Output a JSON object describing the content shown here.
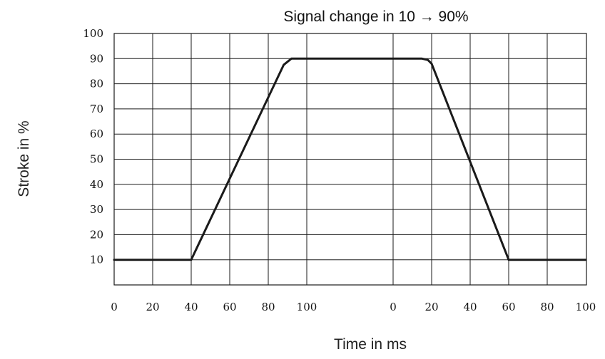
{
  "chart_data": {
    "type": "line",
    "title": "Signal change in 10 → 90%",
    "xlabel": "Time in ms",
    "ylabel": "Stroke in %",
    "ylim": [
      0,
      100
    ],
    "y_ticks": [
      "100",
      "90",
      "80",
      "70",
      "60",
      "50",
      "40",
      "30",
      "20",
      "10"
    ],
    "x_ticks": [
      "0",
      "20",
      "40",
      "60",
      "80",
      "100",
      "0",
      "20",
      "40",
      "60",
      "80",
      "100"
    ],
    "grid": true,
    "panels": [
      {
        "xlim": [
          0,
          110
        ]
      },
      {
        "xlim": [
          -15,
          100
        ]
      }
    ],
    "series": [
      {
        "color": "#1a1a1a",
        "segments": [
          {
            "panel": 0,
            "x": [
              0,
              40,
              88,
              92,
              110
            ],
            "y": [
              10,
              10,
              87.5,
              90,
              90
            ]
          },
          {
            "panel": 1,
            "x": [
              -15,
              15,
              18,
              20,
              60,
              100
            ],
            "y": [
              90,
              90,
              89.5,
              88,
              10,
              10
            ]
          }
        ]
      }
    ]
  }
}
